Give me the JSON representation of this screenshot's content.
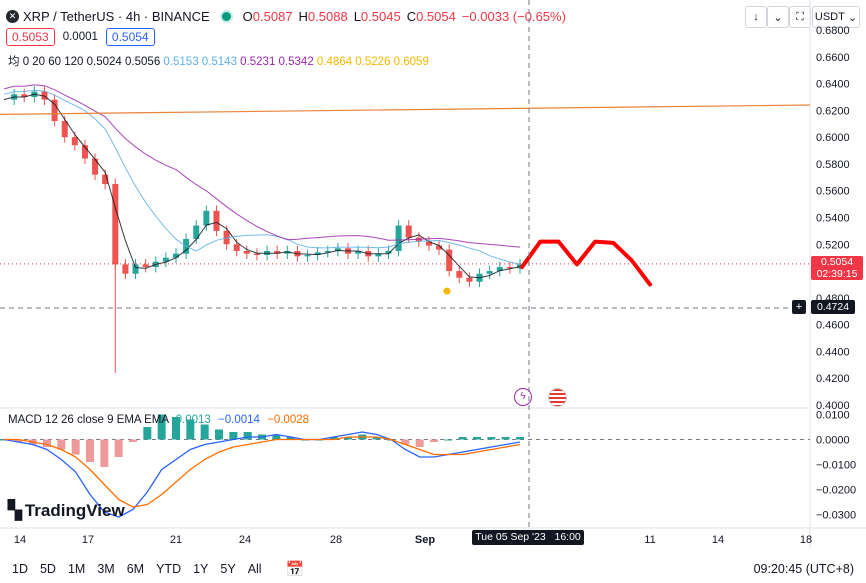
{
  "header": {
    "pair": "XRP / TetherUS · 4h · BINANCE",
    "o_label": "O",
    "o": "0.5087",
    "h_label": "H",
    "h": "0.5088",
    "l_label": "L",
    "l": "0.5045",
    "c_label": "C",
    "c": "0.5054",
    "change": "−0.0033 (−0.65%)"
  },
  "quote": {
    "bid": "0.5053",
    "spread": "0.0001",
    "ask": "0.5054"
  },
  "ma_legend": {
    "label": "均 0 20 60 120",
    "values": [
      {
        "text": "0.5024",
        "color": "#131722"
      },
      {
        "text": "0.5056",
        "color": "#131722"
      },
      {
        "text": "0.5153",
        "color": "#5ab0e8"
      },
      {
        "text": "0.5143",
        "color": "#5ab0e8"
      },
      {
        "text": "0.5231",
        "color": "#9c27b0"
      },
      {
        "text": "0.5342",
        "color": "#9c27b0"
      },
      {
        "text": "0.4864",
        "color": "#f5b700"
      },
      {
        "text": "0.5226",
        "color": "#f5b700"
      },
      {
        "text": "0.6059",
        "color": "#f5b700"
      }
    ]
  },
  "macd_legend": {
    "label": "MACD 12 26 close 9 EMA EMA",
    "v1": "0.0013",
    "v2": "−0.0014",
    "v3": "−0.0028"
  },
  "toolbar": {
    "currency": "USDT"
  },
  "price_tag": {
    "value": "0.5054",
    "timer": "02:39:15"
  },
  "crosshair": {
    "price": "0.4724",
    "time": "Tue 05 Sep '23   16:00"
  },
  "bottom": {
    "ranges": [
      "1D",
      "5D",
      "1M",
      "3M",
      "6M",
      "YTD",
      "1Y",
      "5Y",
      "All"
    ],
    "clock": "09:20:45 (UTC+8)"
  },
  "logo": {
    "text": "TradingView"
  },
  "chart_data": [
    {
      "type": "candlestick",
      "title": "XRP / TetherUS · 4h · BINANCE",
      "ylim": [
        0.4,
        0.68
      ],
      "y_ticks": [
        "0.6800",
        "0.6600",
        "0.6400",
        "0.6200",
        "0.6000",
        "0.5800",
        "0.5600",
        "0.5400",
        "0.5200",
        "0.5000",
        "0.4800",
        "0.4600",
        "0.4400",
        "0.4200",
        "0.4000"
      ],
      "x_ticks": [
        "14",
        "17",
        "21",
        "24",
        "28",
        "Sep",
        "11",
        "14",
        "18"
      ],
      "close_series": [
        0.628,
        0.632,
        0.63,
        0.634,
        0.628,
        0.612,
        0.6,
        0.594,
        0.584,
        0.572,
        0.565,
        0.505,
        0.498,
        0.505,
        0.503,
        0.507,
        0.51,
        0.513,
        0.524,
        0.534,
        0.545,
        0.53,
        0.52,
        0.515,
        0.513,
        0.512,
        0.515,
        0.513,
        0.515,
        0.511,
        0.512,
        0.514,
        0.515,
        0.517,
        0.513,
        0.515,
        0.511,
        0.513,
        0.515,
        0.534,
        0.525,
        0.522,
        0.519,
        0.516,
        0.5,
        0.495,
        0.492,
        0.498,
        0.5,
        0.503,
        0.502,
        0.505
      ],
      "ma_lines": [
        {
          "name": "MA20",
          "color": "#131722"
        },
        {
          "name": "MA60",
          "color": "#5ab0e8"
        },
        {
          "name": "MA120",
          "color": "#9c27b0"
        }
      ],
      "trend_line": {
        "color": "#e8833a",
        "from": 0.617,
        "to": 0.624
      },
      "projection": {
        "color": "#ff0000",
        "values": [
          0.503,
          0.522,
          0.522,
          0.505,
          0.522,
          0.521,
          0.508,
          0.49
        ]
      },
      "markers": [
        {
          "price": 0.485,
          "color": "#f5b700"
        }
      ],
      "last_price": 0.5054,
      "crosshair_price": 0.4724
    },
    {
      "type": "histogram",
      "title": "MACD 12 26 close 9 EMA EMA",
      "ylim": [
        -0.033,
        0.011
      ],
      "y_ticks": [
        "0.0100",
        "0.0000",
        "−0.0100",
        "−0.0200",
        "−0.0300"
      ],
      "macd": [
        0.0,
        -0.001,
        -0.002,
        -0.004,
        -0.008,
        -0.013,
        -0.022,
        -0.029,
        -0.031,
        -0.028,
        -0.021,
        -0.012,
        -0.008,
        -0.004,
        -0.002,
        -0.001,
        0.0,
        0.001,
        0.001,
        0.002,
        0.001,
        0.0,
        0.0,
        0.001,
        0.002,
        0.003,
        0.002,
        0.0,
        -0.004,
        -0.007,
        -0.007,
        -0.006,
        -0.005,
        -0.004,
        -0.003,
        -0.002,
        -0.001
      ],
      "signal": [
        0.0,
        0.0,
        -0.001,
        -0.002,
        -0.004,
        -0.007,
        -0.012,
        -0.018,
        -0.024,
        -0.027,
        -0.026,
        -0.022,
        -0.017,
        -0.012,
        -0.008,
        -0.005,
        -0.003,
        -0.002,
        -0.001,
        0.0,
        0.0,
        0.0,
        0.0,
        0.0,
        0.001,
        0.001,
        0.001,
        0.0,
        -0.002,
        -0.004,
        -0.006,
        -0.006,
        -0.006,
        -0.005,
        -0.004,
        -0.003,
        -0.002
      ],
      "histogram": [
        0.0,
        -0.001,
        -0.002,
        -0.003,
        -0.004,
        -0.006,
        -0.009,
        -0.011,
        -0.007,
        -0.001,
        0.005,
        0.01,
        0.009,
        0.008,
        0.006,
        0.004,
        0.003,
        0.003,
        0.002,
        0.002,
        0.001,
        0.0,
        0.0,
        0.001,
        0.001,
        0.002,
        0.001,
        0.0,
        -0.002,
        -0.003,
        -0.001,
        0.0,
        0.001,
        0.001,
        0.001,
        0.001,
        0.001
      ]
    }
  ]
}
